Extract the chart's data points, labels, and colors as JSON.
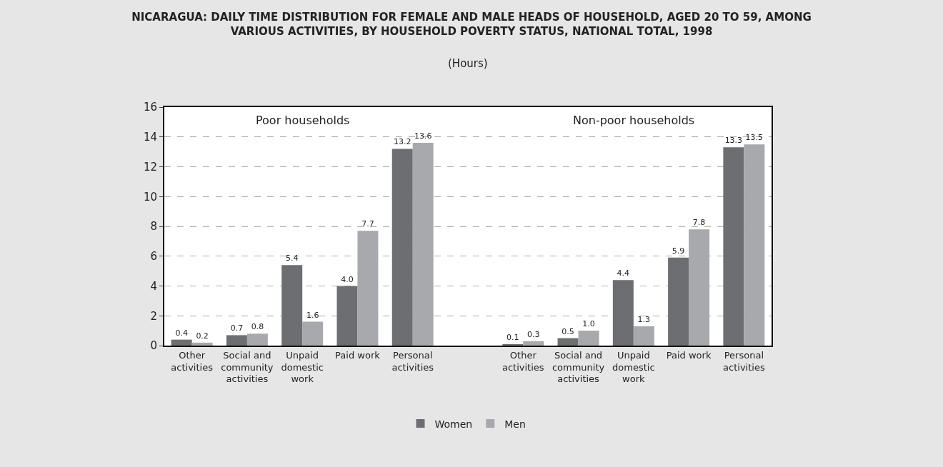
{
  "chart_data": {
    "type": "bar",
    "title": "NICARAGUA: DAILY TIME DISTRIBUTION FOR FEMALE AND MALE HEADS OF HOUSEHOLD, AGED 20 TO 59, AMONG VARIOUS ACTIVITIES, BY HOUSEHOLD POVERTY STATUS, NATIONAL TOTAL, 1998",
    "subtitle": "(Hours)",
    "categories": [
      "Other activities",
      "Social and community activities",
      "Unpaid domestic work",
      "Paid work",
      "Personal activities",
      null,
      "Other activities",
      "Social and community activities",
      "Unpaid domestic work",
      "Paid work",
      "Personal activities"
    ],
    "series": [
      {
        "name": "Women",
        "color": "#6d6e71",
        "values": [
          0.4,
          0.7,
          5.4,
          4.0,
          13.2,
          null,
          0.1,
          0.5,
          4.4,
          5.9,
          13.3
        ],
        "value_labels": [
          "0.4",
          "0.7",
          "5.4",
          "4.0",
          "13.2",
          null,
          "0.1",
          "0.5",
          "4.4",
          "5.9",
          "13.3"
        ]
      },
      {
        "name": "Men",
        "color": "#a7a9ac",
        "values": [
          0.2,
          0.8,
          1.6,
          7.7,
          13.6,
          null,
          0.3,
          1.0,
          1.3,
          7.8,
          13.5
        ],
        "value_labels": [
          "0.2",
          "0.8",
          "1.6",
          "7.7",
          "13.6",
          null,
          "0.3",
          "1.0",
          "1.3",
          "7.8",
          "13.5"
        ]
      }
    ],
    "annotations": [
      "Poor households",
      "Non-poor households"
    ],
    "ylim": [
      0,
      16
    ],
    "yticks": [
      0,
      2,
      4,
      6,
      8,
      10,
      12,
      14,
      16
    ],
    "grid": "y",
    "legend": "bottom"
  }
}
